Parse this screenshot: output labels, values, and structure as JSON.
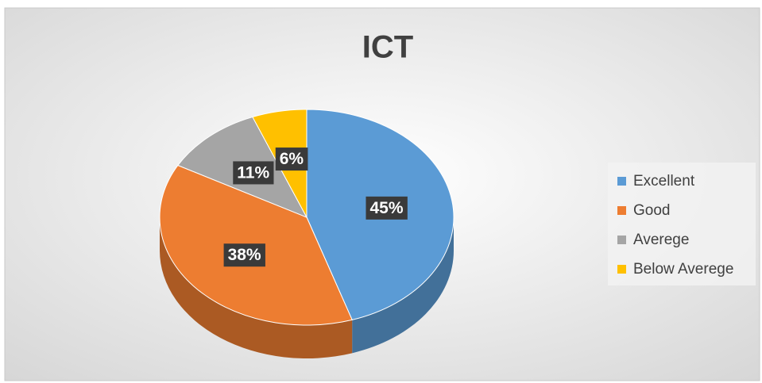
{
  "chart_data": {
    "type": "pie",
    "title": "ICT",
    "categories": [
      "Excellent",
      "Good",
      "Averege",
      "Below Averege"
    ],
    "values": [
      45,
      38,
      11,
      6
    ],
    "value_labels": [
      "45%",
      "38%",
      "11%",
      "6%"
    ],
    "colors": [
      "#5b9bd5",
      "#ed7d31",
      "#a5a5a5",
      "#ffc000"
    ],
    "legend": "right"
  }
}
